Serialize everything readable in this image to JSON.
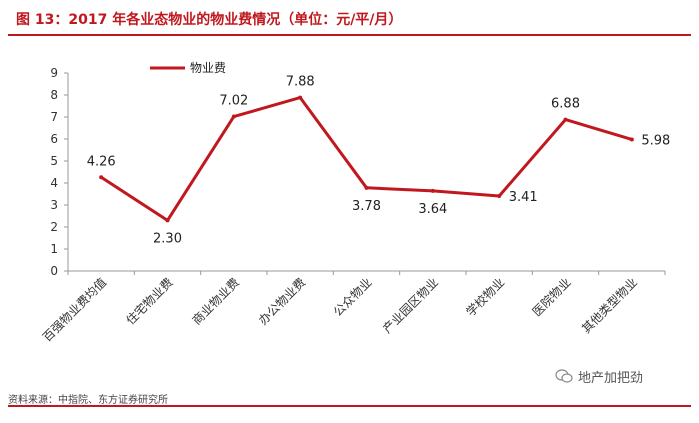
{
  "title": "图 13：2017 年各业态物业的物业费情况（单位：元/平/月）",
  "source": "资料来源：中指院、东方证券研究所",
  "watermark": "地产加把劲",
  "colors": {
    "accent": "#c0181e",
    "line": "#c0181e"
  },
  "chart_data": {
    "type": "line",
    "categories": [
      "百强物业费均值",
      "住宅物业费",
      "商业物业费",
      "办公物业费",
      "公众物业",
      "产业园区物业",
      "学校物业",
      "医院物业",
      "其他类型物业"
    ],
    "series": [
      {
        "name": "物业费",
        "values": [
          4.26,
          2.3,
          7.02,
          7.88,
          3.78,
          3.64,
          3.41,
          6.88,
          5.98
        ]
      }
    ],
    "data_labels": [
      "4.26",
      "2.30",
      "7.02",
      "7.88",
      "3.78",
      "3.64",
      "3.41",
      "6.88",
      "5.98"
    ],
    "yticks": [
      "0",
      "1",
      "2",
      "3",
      "4",
      "5",
      "6",
      "7",
      "8",
      "9"
    ],
    "ylim": [
      0,
      9
    ],
    "legend": "top-left",
    "grid": false
  }
}
